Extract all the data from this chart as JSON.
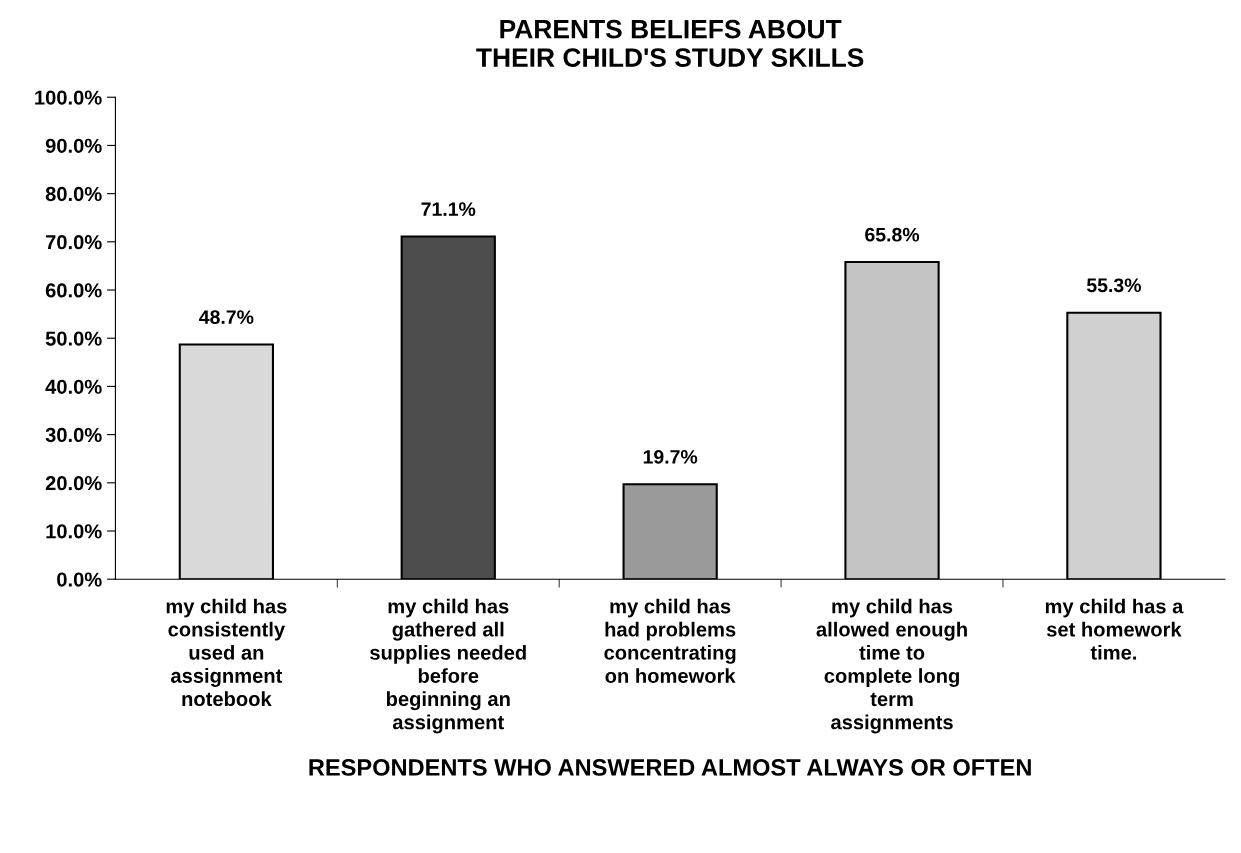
{
  "chart_data": {
    "type": "bar",
    "title": "PARENTS BELIEFS ABOUT\nTHEIR CHILD'S STUDY SKILLS",
    "xlabel": "RESPONDENTS WHO ANSWERED ALMOST ALWAYS OR OFTEN",
    "categories": [
      "my child has\nconsistently\nused an\nassignment\nnotebook",
      "my child has\ngathered all\nsupplies needed\nbefore\nbeginning an\nassignment",
      "my child has\nhad problems\nconcentrating\non homework",
      "my child has\nallowed enough\ntime to\ncomplete long\nterm\nassignments",
      "my child has a\nset homework\ntime."
    ],
    "values": [
      48.7,
      71.1,
      19.7,
      65.8,
      55.3
    ],
    "value_labels": [
      "48.7%",
      "71.1%",
      "19.7%",
      "65.8%",
      "55.3%"
    ],
    "colors": [
      "#d9d9d9",
      "#4d4d4d",
      "#9a9a9a",
      "#c4c4c4",
      "#d0d0d0"
    ],
    "ylim": [
      0,
      100
    ],
    "yticks": [
      {
        "value": 0,
        "label": "0.0%"
      },
      {
        "value": 10,
        "label": "10.0%"
      },
      {
        "value": 20,
        "label": "20.0%"
      },
      {
        "value": 30,
        "label": "30.0%"
      },
      {
        "value": 40,
        "label": "40.0%"
      },
      {
        "value": 50,
        "label": "50.0%"
      },
      {
        "value": 60,
        "label": "60.0%"
      },
      {
        "value": 70,
        "label": "70.0%"
      },
      {
        "value": 80,
        "label": "80.0%"
      },
      {
        "value": 90,
        "label": "90.0%"
      },
      {
        "value": 100,
        "label": "100.0%"
      }
    ],
    "grid": false,
    "legend": false
  }
}
